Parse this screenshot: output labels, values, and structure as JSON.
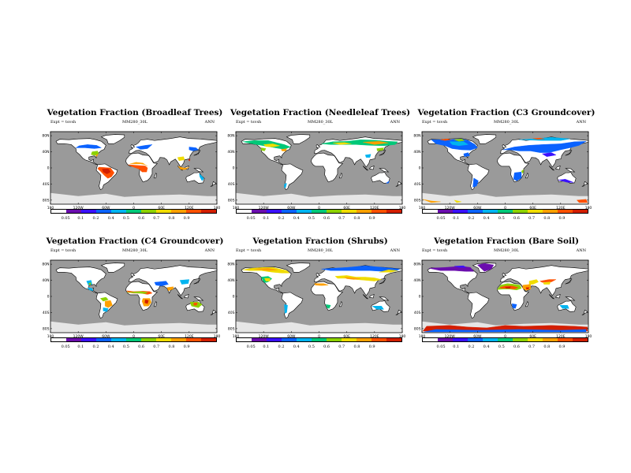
{
  "panels": [
    {
      "title": "Vegetation Fraction (Broadleaf Trees)",
      "expt": "Expt = tsvsh",
      "model": "MM280_30L",
      "season": "ANN",
      "map_key": "broadleaf"
    },
    {
      "title": "Vegetation Fraction (Needleleaf Trees)",
      "expt": "Expt = tsvsh",
      "model": "MM280_30L",
      "season": "ANN",
      "map_key": "needleleaf"
    },
    {
      "title": "Vegetation Fraction (C3 Groundcover)",
      "expt": "Expt = tsvsh",
      "model": "MM280_30L",
      "season": "ANN",
      "map_key": "c3"
    },
    {
      "title": "Vegetation Fraction (C4 Groundcover)",
      "expt": "Expt = tsvsh",
      "model": "MM280_30L",
      "season": "ANN",
      "map_key": "c4"
    },
    {
      "title": "Vegetation Fraction (Shrubs)",
      "expt": "Expt = tsvsh",
      "model": "MM280_30L",
      "season": "ANN",
      "map_key": "shrubs"
    },
    {
      "title": "Vegetation Fraction (Bare Soil)",
      "expt": "Expt = tsvsh",
      "model": "MM280_30L",
      "season": "ANN",
      "map_key": "bare"
    }
  ],
  "lon_labels": [
    "180",
    "120W",
    "60W",
    "0",
    "60E",
    "120E",
    "180"
  ],
  "lat_labels": [
    "80N",
    "40N",
    "0",
    "40S",
    "80S"
  ],
  "colorbar": {
    "labels": [
      "0.05",
      "0.1",
      "0.2",
      "0.4",
      "0.5",
      "0.6",
      "0.7",
      "0.8",
      "0.9"
    ],
    "colors": [
      "#ffffff",
      "#6a0dad",
      "#3a10ff",
      "#0a62ff",
      "#00b4f0",
      "#00c878",
      "#8cd200",
      "#f0dc00",
      "#ffa000",
      "#ff5000",
      "#d21e00"
    ]
  },
  "map_colors": {
    "ocean": "#9a9a9a",
    "land": "#ffffff",
    "ice": "#e6e6e6"
  }
}
